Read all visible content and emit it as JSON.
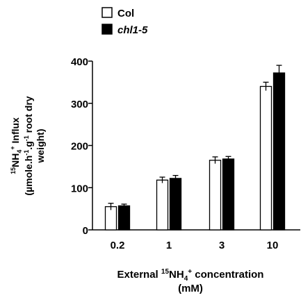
{
  "chart_data": {
    "type": "bar",
    "title": "",
    "categories": [
      "0.2",
      "1",
      "3",
      "10"
    ],
    "series": [
      {
        "name": "Col",
        "fill": "#ffffff",
        "values": [
          55,
          118,
          165,
          340
        ],
        "errors": [
          8,
          7,
          8,
          10
        ]
      },
      {
        "name": "chl1-5",
        "fill": "#000000",
        "values": [
          57,
          122,
          168,
          372
        ],
        "errors": [
          4,
          7,
          6,
          18
        ]
      }
    ],
    "ylim": [
      0,
      400
    ],
    "yticks": [
      "0",
      "100",
      "200",
      "300",
      "400"
    ],
    "xlabel": {
      "line1_pre": "External ",
      "line1_sup": "15",
      "line1_main": "NH",
      "line1_sub": "4",
      "line1_sup2": "+",
      "line1_post": " concentration",
      "line2": "(mM)"
    },
    "ylabel": {
      "line1_sup": "15",
      "line1_main": "NH",
      "line1_sub": "4",
      "line1_sup2": "+",
      "line1_post": " Influx",
      "line2_pre": "(µmole.h",
      "line2_sup1": "-1",
      "line2_mid": ".g",
      "line2_sup2": "-1",
      "line2_post": " root dry",
      "line3": "weight)"
    },
    "grid": false,
    "legend_position": "top-left"
  }
}
